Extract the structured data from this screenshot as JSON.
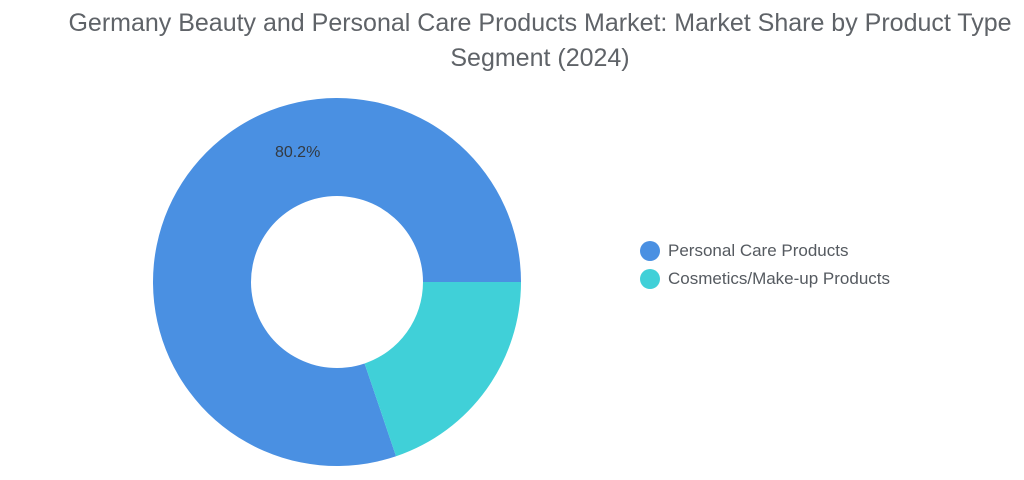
{
  "chart_data": {
    "type": "pie",
    "title": "Germany Beauty and Personal Care Products Market: Market Share by Product Type Segment (2024)",
    "donut": true,
    "categories": [
      "Personal Care Products",
      "Cosmetics/Make-up Products"
    ],
    "values": [
      80.2,
      19.8
    ],
    "colors": [
      "#4a90e2",
      "#40d0d8"
    ],
    "data_labels": [
      "80.2%",
      ""
    ],
    "legend_position": "right"
  }
}
